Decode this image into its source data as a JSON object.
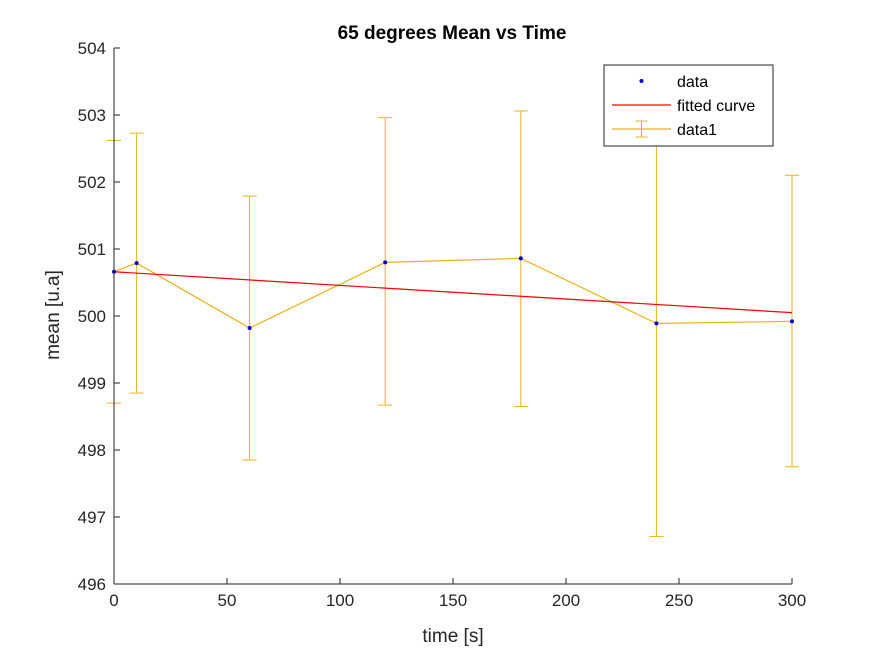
{
  "chart_data": {
    "type": "line",
    "title": "65 degrees Mean vs Time",
    "xlabel": "time [s]",
    "ylabel": "mean [u.a]",
    "xlim": [
      0,
      300
    ],
    "ylim": [
      496,
      504
    ],
    "x_ticks": [
      0,
      50,
      100,
      150,
      200,
      250,
      300
    ],
    "y_ticks": [
      496,
      497,
      498,
      499,
      500,
      501,
      502,
      503,
      504
    ],
    "grid": false,
    "legend_position": "top-right",
    "series": [
      {
        "name": "data",
        "kind": "markers",
        "color": "#0000cc",
        "x": [
          0,
          10,
          60,
          120,
          180,
          240,
          300
        ],
        "y": [
          500.66,
          500.79,
          499.82,
          500.8,
          500.86,
          499.89,
          499.92
        ]
      },
      {
        "name": "fitted curve",
        "kind": "line",
        "color": "#ff0000",
        "x": [
          0,
          300
        ],
        "y": [
          500.66,
          500.05
        ]
      },
      {
        "name": "data1",
        "kind": "errorbar",
        "color": "#edb120",
        "x": [
          0,
          10,
          60,
          120,
          180,
          240,
          300
        ],
        "y": [
          500.66,
          500.79,
          499.82,
          500.8,
          500.86,
          499.89,
          499.92
        ],
        "lower": [
          498.7,
          498.85,
          497.85,
          498.67,
          498.65,
          496.71,
          497.75
        ],
        "upper": [
          502.62,
          502.73,
          501.79,
          502.96,
          503.06,
          502.58,
          502.1
        ]
      }
    ]
  }
}
